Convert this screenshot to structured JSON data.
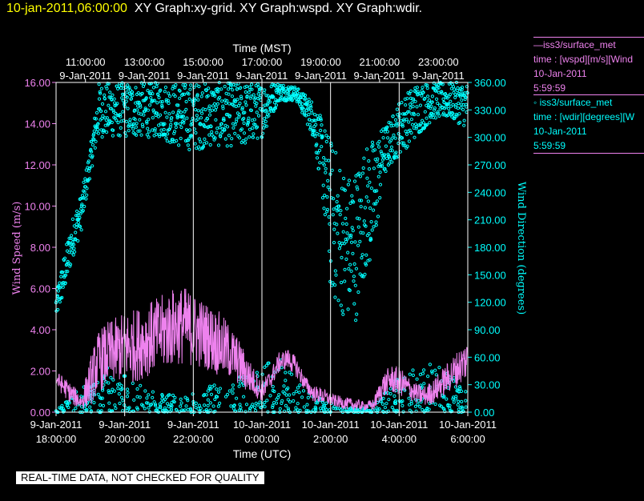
{
  "header": {
    "timestamp": "10-jan-2011,06:00:00",
    "graph_titles": "XY Graph:xy-grid.  XY Graph:wspd.  XY Graph:wdir."
  },
  "legend": {
    "speed": {
      "name": "—iss3/surface_met",
      "variable": "time : [wspd][m/s][Wind",
      "date": "10-Jan-2011",
      "time": "5:59:59"
    },
    "direction": {
      "name": "◦ iss3/surface_met",
      "variable": "time : [wdir][degrees][W",
      "date": "10-Jan-2011",
      "time": "5:59:59"
    }
  },
  "disclaimer": "REAL-TIME DATA, NOT CHECKED FOR QUALITY",
  "colors": {
    "speed": "#ee82ee",
    "direction": "#00ffff",
    "background": "#000000",
    "grid": "#ffffff",
    "timestamp": "#ffff00"
  },
  "chart_data": {
    "type": "line",
    "top_axis": {
      "label": "Time (MST)",
      "ticks": [
        {
          "time": "11:00:00",
          "date": "9-Jan-2011"
        },
        {
          "time": "13:00:00",
          "date": "9-Jan-2011"
        },
        {
          "time": "15:00:00",
          "date": "9-Jan-2011"
        },
        {
          "time": "17:00:00",
          "date": "9-Jan-2011"
        },
        {
          "time": "19:00:00",
          "date": "9-Jan-2011"
        },
        {
          "time": "21:00:00",
          "date": "9-Jan-2011"
        },
        {
          "time": "23:00:00",
          "date": "9-Jan-2011"
        }
      ]
    },
    "bottom_axis": {
      "label": "Time (UTC)",
      "ticks": [
        {
          "date": "9-Jan-2011",
          "time": "18:00:00"
        },
        {
          "date": "9-Jan-2011",
          "time": "20:00:00"
        },
        {
          "date": "9-Jan-2011",
          "time": "22:00:00"
        },
        {
          "date": "10-Jan-2011",
          "time": "0:00:00"
        },
        {
          "date": "10-Jan-2011",
          "time": "2:00:00"
        },
        {
          "date": "10-Jan-2011",
          "time": "4:00:00"
        },
        {
          "date": "10-Jan-2011",
          "time": "6:00:00"
        }
      ]
    },
    "xlim_utc_hours": [
      18,
      30
    ],
    "left_axis": {
      "label": "Wind Speed (m/s)",
      "ylim": [
        0,
        16
      ],
      "ticks": [
        "0.00",
        "2.00",
        "4.00",
        "6.00",
        "8.00",
        "10.00",
        "12.00",
        "14.00",
        "16.00"
      ]
    },
    "right_axis": {
      "label": "Wind Direction (degrees)",
      "ylim": [
        0,
        360
      ],
      "ticks": [
        "0.00",
        "30.00",
        "60.00",
        "90.00",
        "120.00",
        "150.00",
        "180.00",
        "210.00",
        "240.00",
        "270.00",
        "300.00",
        "330.00",
        "360.00"
      ]
    },
    "grid": "vertical",
    "series": [
      {
        "name": "iss3/surface_met wspd",
        "axis": "left",
        "style": "line",
        "x": [
          18.0,
          18.25,
          18.5,
          18.75,
          19.0,
          19.25,
          19.5,
          19.75,
          20.0,
          20.25,
          20.5,
          20.75,
          21.0,
          21.25,
          21.5,
          21.75,
          22.0,
          22.25,
          22.5,
          22.75,
          23.0,
          23.25,
          23.5,
          23.75,
          24.0,
          24.25,
          24.5,
          24.75,
          25.0,
          25.25,
          25.5,
          25.75,
          26.0,
          26.25,
          26.5,
          26.75,
          27.0,
          27.25,
          27.5,
          27.75,
          28.0,
          28.25,
          28.5,
          28.75,
          29.0,
          29.25,
          29.5,
          29.75,
          30.0
        ],
        "y": [
          1.6,
          1.2,
          0.8,
          0.5,
          1.5,
          2.5,
          2.8,
          3.0,
          3.2,
          3.2,
          3.4,
          3.6,
          3.8,
          4.0,
          4.2,
          4.2,
          4.0,
          3.8,
          3.6,
          3.3,
          3.0,
          2.6,
          2.0,
          1.5,
          1.0,
          1.6,
          2.4,
          2.6,
          2.2,
          1.4,
          0.9,
          0.8,
          0.6,
          0.5,
          0.4,
          0.35,
          0.3,
          0.35,
          1.2,
          1.6,
          1.5,
          1.2,
          0.9,
          0.8,
          1.0,
          1.4,
          1.8,
          2.2,
          2.6
        ],
        "spread": [
          0.4,
          0.5,
          0.5,
          0.4,
          1.2,
          1.5,
          1.6,
          1.6,
          1.7,
          1.8,
          1.8,
          1.8,
          1.8,
          1.9,
          1.9,
          1.9,
          1.8,
          1.7,
          1.6,
          1.6,
          1.4,
          1.2,
          1.0,
          0.7,
          0.5,
          0.5,
          0.5,
          0.5,
          0.5,
          0.4,
          0.4,
          0.4,
          0.3,
          0.3,
          0.3,
          0.3,
          0.2,
          0.3,
          0.6,
          0.7,
          0.7,
          0.6,
          0.5,
          0.5,
          0.6,
          0.7,
          0.8,
          0.9,
          1.0
        ]
      },
      {
        "name": "iss3/surface_met wdir",
        "axis": "right",
        "style": "points",
        "upper": {
          "x": [
            18.0,
            18.25,
            18.5,
            18.75,
            19.0,
            19.25,
            19.5,
            20.0,
            20.5,
            21.0,
            21.5,
            22.0,
            22.5,
            23.0,
            23.5,
            24.0,
            24.5,
            25.0,
            25.5,
            25.75,
            26.0,
            26.25,
            26.5,
            26.75,
            27.0,
            27.25,
            27.5,
            27.75,
            28.0,
            28.5,
            29.0,
            29.5,
            30.0
          ],
          "lo": [
            100,
            130,
            170,
            200,
            260,
            300,
            300,
            300,
            300,
            300,
            290,
            285,
            290,
            290,
            290,
            300,
            340,
            340,
            300,
            240,
            130,
            110,
            100,
            100,
            150,
            160,
            250,
            270,
            280,
            300,
            320,
            320,
            310
          ],
          "hi": [
            130,
            175,
            215,
            240,
            290,
            360,
            360,
            360,
            360,
            360,
            360,
            360,
            360,
            360,
            360,
            360,
            360,
            355,
            340,
            320,
            300,
            280,
            260,
            270,
            290,
            300,
            310,
            320,
            340,
            360,
            360,
            360,
            360
          ]
        },
        "lower": {
          "x": [
            18.0,
            18.5,
            19.0,
            19.5,
            20.0,
            20.5,
            21.0,
            21.5,
            22.0,
            22.5,
            23.0,
            23.5,
            24.0,
            24.5,
            25.0,
            25.5,
            26.0,
            26.5,
            27.0,
            27.5,
            28.0,
            28.5,
            29.0,
            29.5,
            30.0
          ],
          "lo": [
            0,
            0,
            0,
            0,
            0,
            0,
            0,
            0,
            0,
            0,
            0,
            0,
            0,
            0,
            0,
            0,
            0,
            0,
            0,
            0,
            0,
            0,
            0,
            0,
            0
          ],
          "hi": [
            5,
            20,
            35,
            50,
            40,
            30,
            20,
            20,
            25,
            30,
            35,
            40,
            50,
            60,
            40,
            20,
            10,
            5,
            5,
            20,
            40,
            50,
            60,
            40,
            30
          ]
        }
      }
    ]
  }
}
